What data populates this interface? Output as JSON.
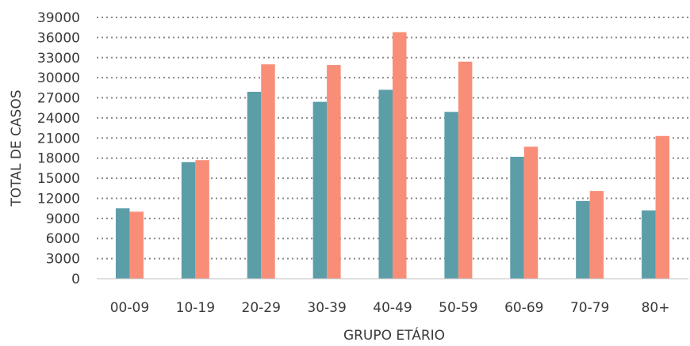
{
  "chart_data": {
    "type": "bar",
    "title": "",
    "xlabel": "GRUPO ETÁRIO",
    "ylabel": "TOTAL DE CASOS",
    "categories": [
      "00-09",
      "10-19",
      "20-29",
      "30-39",
      "40-49",
      "50-59",
      "60-69",
      "70-79",
      "80+"
    ],
    "series": [
      {
        "values": [
          10500,
          17400,
          27900,
          26400,
          28200,
          24900,
          18200,
          11600,
          10200
        ],
        "color": "#5b9ea8"
      },
      {
        "values": [
          10000,
          17700,
          32000,
          31900,
          36800,
          32400,
          19700,
          13100,
          21300
        ],
        "color": "#f98e78"
      }
    ],
    "ylim": [
      0,
      39000
    ],
    "yticks": [
      "0",
      "3000",
      "6000",
      "9000",
      "12000",
      "15000",
      "18000",
      "21000",
      "24000",
      "27000",
      "30000",
      "33000",
      "36000",
      "39000"
    ],
    "grid": true,
    "legend": "none"
  }
}
